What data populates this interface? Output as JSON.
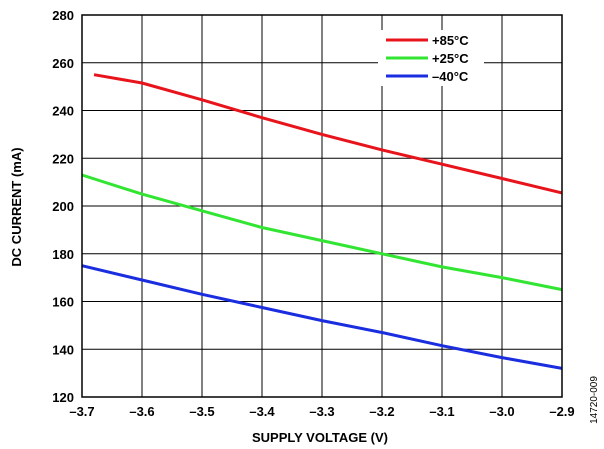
{
  "chart_data": {
    "type": "line",
    "xlabel": "SUPPLY VOLTAGE (V)",
    "ylabel": "DC CURRENT (mA)",
    "xlim": [
      -3.7,
      -2.9
    ],
    "ylim": [
      120,
      280
    ],
    "x_ticks": [
      "–3.7",
      "–3.6",
      "–3.5",
      "–3.4",
      "–3.3",
      "–3.2",
      "–3.1",
      "–3.0",
      "–2.9"
    ],
    "y_ticks": [
      "120",
      "140",
      "160",
      "180",
      "200",
      "220",
      "240",
      "260",
      "280"
    ],
    "grid": true,
    "legend_position": "top-right",
    "series": [
      {
        "name": "+85°C",
        "color": "#e8141b",
        "x": [
          -3.68,
          -3.6,
          -3.5,
          -3.4,
          -3.3,
          -3.2,
          -3.1,
          -3.0,
          -2.9
        ],
        "y": [
          255,
          251.5,
          244.5,
          237,
          230,
          223.5,
          217.5,
          211.5,
          205.5
        ]
      },
      {
        "name": "+25°C",
        "color": "#33e533",
        "x": [
          -3.7,
          -3.6,
          -3.5,
          -3.4,
          -3.3,
          -3.2,
          -3.1,
          -3.0,
          -2.9
        ],
        "y": [
          213,
          205,
          198,
          191,
          185.5,
          180,
          174.5,
          170,
          165
        ]
      },
      {
        "name": "–40°C",
        "color": "#1a2ee0",
        "x": [
          -3.7,
          -3.6,
          -3.5,
          -3.4,
          -3.3,
          -3.2,
          -3.1,
          -3.0,
          -2.9
        ],
        "y": [
          175,
          169,
          163,
          157.5,
          152,
          147,
          141.5,
          136.5,
          132
        ]
      }
    ]
  },
  "figure_id": "14720-009"
}
